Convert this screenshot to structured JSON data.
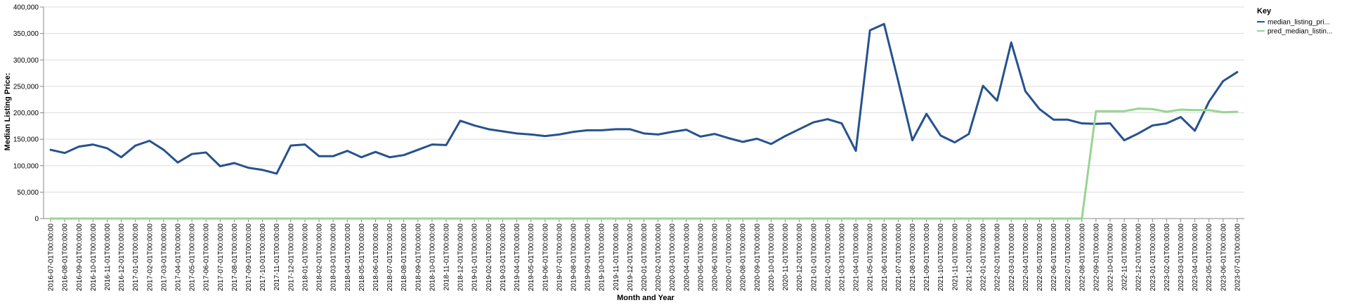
{
  "chart_data": {
    "type": "line",
    "xlabel": "Month and Year",
    "ylabel": "Median Listing Price:",
    "ylim": [
      0,
      400000
    ],
    "yticks": [
      0,
      50000,
      100000,
      150000,
      200000,
      250000,
      300000,
      350000,
      400000
    ],
    "ytick_labels": [
      "0",
      "50,000",
      "100,000",
      "150,000",
      "200,000",
      "250,000",
      "300,000",
      "350,000",
      "400,000"
    ],
    "grid": "horizontal",
    "legend": {
      "title": "Key",
      "placement": "right"
    },
    "x": [
      "2016-07-01T00:00:00",
      "2016-08-01T00:00:00",
      "2016-09-01T00:00:00",
      "2016-10-01T00:00:00",
      "2016-11-01T00:00:00",
      "2016-12-01T00:00:00",
      "2017-01-01T00:00:00",
      "2017-02-01T00:00:00",
      "2017-03-01T00:00:00",
      "2017-04-01T00:00:00",
      "2017-05-01T00:00:00",
      "2017-06-01T00:00:00",
      "2017-07-01T00:00:00",
      "2017-08-01T00:00:00",
      "2017-09-01T00:00:00",
      "2017-10-01T00:00:00",
      "2017-11-01T00:00:00",
      "2017-12-01T00:00:00",
      "2018-01-01T00:00:00",
      "2018-02-01T00:00:00",
      "2018-03-01T00:00:00",
      "2018-04-01T00:00:00",
      "2018-05-01T00:00:00",
      "2018-06-01T00:00:00",
      "2018-07-01T00:00:00",
      "2018-08-01T00:00:00",
      "2018-09-01T00:00:00",
      "2018-10-01T00:00:00",
      "2018-11-01T00:00:00",
      "2018-12-01T00:00:00",
      "2019-01-01T00:00:00",
      "2019-02-01T00:00:00",
      "2019-03-01T00:00:00",
      "2019-04-01T00:00:00",
      "2019-05-01T00:00:00",
      "2019-06-01T00:00:00",
      "2019-07-01T00:00:00",
      "2019-08-01T00:00:00",
      "2019-09-01T00:00:00",
      "2019-10-01T00:00:00",
      "2019-11-01T00:00:00",
      "2019-12-01T00:00:00",
      "2020-01-01T00:00:00",
      "2020-02-01T00:00:00",
      "2020-03-01T00:00:00",
      "2020-04-01T00:00:00",
      "2020-05-01T00:00:00",
      "2020-06-01T00:00:00",
      "2020-07-01T00:00:00",
      "2020-08-01T00:00:00",
      "2020-09-01T00:00:00",
      "2020-10-01T00:00:00",
      "2020-11-01T00:00:00",
      "2020-12-01T00:00:00",
      "2021-01-01T00:00:00",
      "2021-02-01T00:00:00",
      "2021-03-01T00:00:00",
      "2021-04-01T00:00:00",
      "2021-05-01T00:00:00",
      "2021-06-01T00:00:00",
      "2021-07-01T00:00:00",
      "2021-08-01T00:00:00",
      "2021-09-01T00:00:00",
      "2021-10-01T00:00:00",
      "2021-11-01T00:00:00",
      "2021-12-01T00:00:00",
      "2022-01-01T00:00:00",
      "2022-02-01T00:00:00",
      "2022-03-01T00:00:00",
      "2022-04-01T00:00:00",
      "2022-05-01T00:00:00",
      "2022-06-01T00:00:00",
      "2022-07-01T00:00:00",
      "2022-08-01T00:00:00",
      "2022-09-01T00:00:00",
      "2022-10-01T00:00:00",
      "2022-11-01T00:00:00",
      "2022-12-01T00:00:00",
      "2023-01-01T00:00:00",
      "2023-02-01T00:00:00",
      "2023-03-01T00:00:00",
      "2023-04-01T00:00:00",
      "2023-05-01T00:00:00",
      "2023-06-01T00:00:00",
      "2023-07-01T00:00:00"
    ],
    "series": [
      {
        "name": "median_listing_pri...",
        "color": "#26528e",
        "values": [
          130000,
          124000,
          136000,
          140000,
          133000,
          116000,
          138000,
          147000,
          130000,
          106000,
          122000,
          125000,
          99000,
          105000,
          96000,
          92000,
          85000,
          138000,
          140000,
          118000,
          118000,
          128000,
          116000,
          126000,
          116000,
          120000,
          130000,
          140000,
          139000,
          185000,
          176000,
          169000,
          165000,
          161000,
          159000,
          156000,
          159000,
          164000,
          167000,
          167000,
          169000,
          169000,
          161000,
          159000,
          164000,
          168000,
          155000,
          160000,
          152000,
          145000,
          151000,
          141000,
          156000,
          169000,
          182000,
          188000,
          180000,
          128000,
          356000,
          368000,
          260000,
          148000,
          198000,
          157000,
          144000,
          160000,
          251000,
          223000,
          333000,
          241000,
          207000,
          187000,
          187000,
          180000,
          179000,
          180000,
          148000,
          161000,
          176000,
          180000,
          192000,
          166000,
          221000,
          260000,
          277000
        ]
      },
      {
        "name": "pred_median_listin...",
        "color": "#98d494",
        "values": [
          0,
          0,
          0,
          0,
          0,
          0,
          0,
          0,
          0,
          0,
          0,
          0,
          0,
          0,
          0,
          0,
          0,
          0,
          0,
          0,
          0,
          0,
          0,
          0,
          0,
          0,
          0,
          0,
          0,
          0,
          0,
          0,
          0,
          0,
          0,
          0,
          0,
          0,
          0,
          0,
          0,
          0,
          0,
          0,
          0,
          0,
          0,
          0,
          0,
          0,
          0,
          0,
          0,
          0,
          0,
          0,
          0,
          0,
          0,
          0,
          0,
          0,
          0,
          0,
          0,
          0,
          0,
          0,
          0,
          0,
          0,
          0,
          0,
          0,
          203000,
          203000,
          203000,
          208000,
          207000,
          202000,
          206000,
          205000,
          205000,
          201000,
          202000
        ]
      }
    ]
  }
}
